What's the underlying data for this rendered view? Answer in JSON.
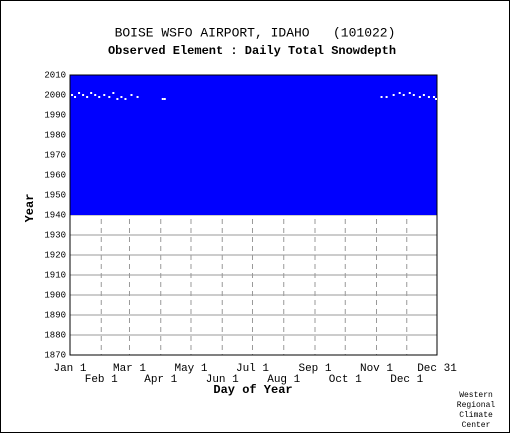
{
  "chart_data": {
    "type": "scatter",
    "title": "BOISE WSFO AIRPORT, IDAHO   (101022)",
    "subtitle": "Observed Element : Daily Total Snowdepth",
    "xlabel": "Day of Year",
    "ylabel": "Year",
    "credit": [
      "Western",
      "Regional",
      "Climate",
      "Center"
    ],
    "xlim": [
      1,
      365
    ],
    "ylim": [
      1870,
      2010
    ],
    "xticks": [
      {
        "value": 1,
        "label": "Jan 1"
      },
      {
        "value": 32,
        "label": "Feb 1"
      },
      {
        "value": 60,
        "label": "Mar 1"
      },
      {
        "value": 91,
        "label": "Apr 1"
      },
      {
        "value": 121,
        "label": "May 1"
      },
      {
        "value": 152,
        "label": "Jun 1"
      },
      {
        "value": 182,
        "label": "Jul 1"
      },
      {
        "value": 213,
        "label": "Aug 1"
      },
      {
        "value": 244,
        "label": "Sep 1"
      },
      {
        "value": 274,
        "label": "Oct 1"
      },
      {
        "value": 305,
        "label": "Nov 1"
      },
      {
        "value": 335,
        "label": "Dec 1"
      },
      {
        "value": 365,
        "label": "Dec 31"
      }
    ],
    "yticks": [
      1870,
      1880,
      1890,
      1900,
      1910,
      1920,
      1930,
      1940,
      1950,
      1960,
      1970,
      1980,
      1990,
      2000,
      2010
    ],
    "record_years": [
      1940,
      2010
    ],
    "record_color": "#0000ff",
    "grid": true,
    "series": [
      {
        "color": "#ffffff",
        "x": [
          3,
          6,
          10,
          14,
          18,
          22,
          26,
          30,
          35,
          40,
          44,
          48,
          52,
          56,
          62,
          68,
          93,
          95,
          310,
          315,
          322,
          328,
          332,
          338,
          342,
          348,
          352,
          357,
          362,
          364
        ],
        "values": [
          2000,
          1999,
          2001,
          2000,
          1999,
          2001,
          2000,
          1999,
          2000,
          1999,
          2001,
          1998,
          1999,
          1998,
          2000,
          1999,
          1998,
          1998,
          1999,
          1999,
          2000,
          2001,
          2000,
          2001,
          2000,
          1999,
          2000,
          1999,
          1999,
          1998
        ]
      }
    ]
  }
}
